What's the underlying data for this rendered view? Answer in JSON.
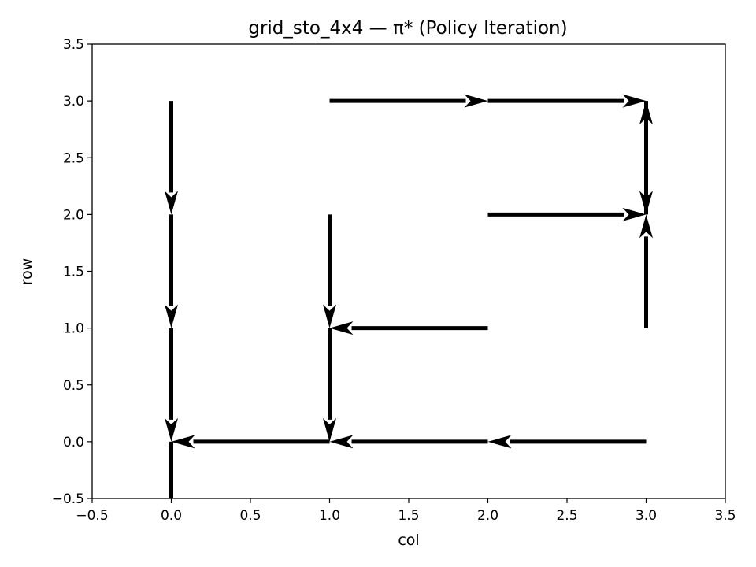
{
  "chart_data": {
    "type": "quiver",
    "title": "grid_sto_4x4 — π* (Policy Iteration)",
    "xlabel": "col",
    "ylabel": "row",
    "xlim": [
      -0.5,
      3.5
    ],
    "ylim": [
      -0.5,
      3.5
    ],
    "xticks": [
      -0.5,
      0.0,
      0.5,
      1.0,
      1.5,
      2.0,
      2.5,
      3.0,
      3.5
    ],
    "yticks": [
      -0.5,
      0.0,
      0.5,
      1.0,
      1.5,
      2.0,
      2.5,
      3.0,
      3.5
    ],
    "xtick_labels": [
      "−0.5",
      "0.0",
      "0.5",
      "1.0",
      "1.5",
      "2.0",
      "2.5",
      "3.0",
      "3.5"
    ],
    "ytick_labels": [
      "−0.5",
      "0.0",
      "0.5",
      "1.0",
      "1.5",
      "2.0",
      "2.5",
      "3.0",
      "3.5"
    ],
    "grid": false,
    "arrow_color": "#000000",
    "arrows": [
      {
        "col": 0,
        "row": 3,
        "dx": 0,
        "dy": -1
      },
      {
        "col": 0,
        "row": 2,
        "dx": 0,
        "dy": -1
      },
      {
        "col": 0,
        "row": 1,
        "dx": 0,
        "dy": -1
      },
      {
        "col": 0,
        "row": 0,
        "dx": 0,
        "dy": -1
      },
      {
        "col": 1,
        "row": 3,
        "dx": 1,
        "dy": 0
      },
      {
        "col": 1,
        "row": 2,
        "dx": 0,
        "dy": -1
      },
      {
        "col": 1,
        "row": 1,
        "dx": 0,
        "dy": -1
      },
      {
        "col": 1,
        "row": 0,
        "dx": -1,
        "dy": 0
      },
      {
        "col": 2,
        "row": 3,
        "dx": 1,
        "dy": 0
      },
      {
        "col": 2,
        "row": 2,
        "dx": 1,
        "dy": 0
      },
      {
        "col": 2,
        "row": 1,
        "dx": -1,
        "dy": 0
      },
      {
        "col": 2,
        "row": 0,
        "dx": -1,
        "dy": 0
      },
      {
        "col": 3,
        "row": 3,
        "dx": 0,
        "dy": -1
      },
      {
        "col": 3,
        "row": 2,
        "dx": 0,
        "dy": 1
      },
      {
        "col": 3,
        "row": 1,
        "dx": 0,
        "dy": 1
      },
      {
        "col": 3,
        "row": 0,
        "dx": -1,
        "dy": 0
      }
    ]
  }
}
